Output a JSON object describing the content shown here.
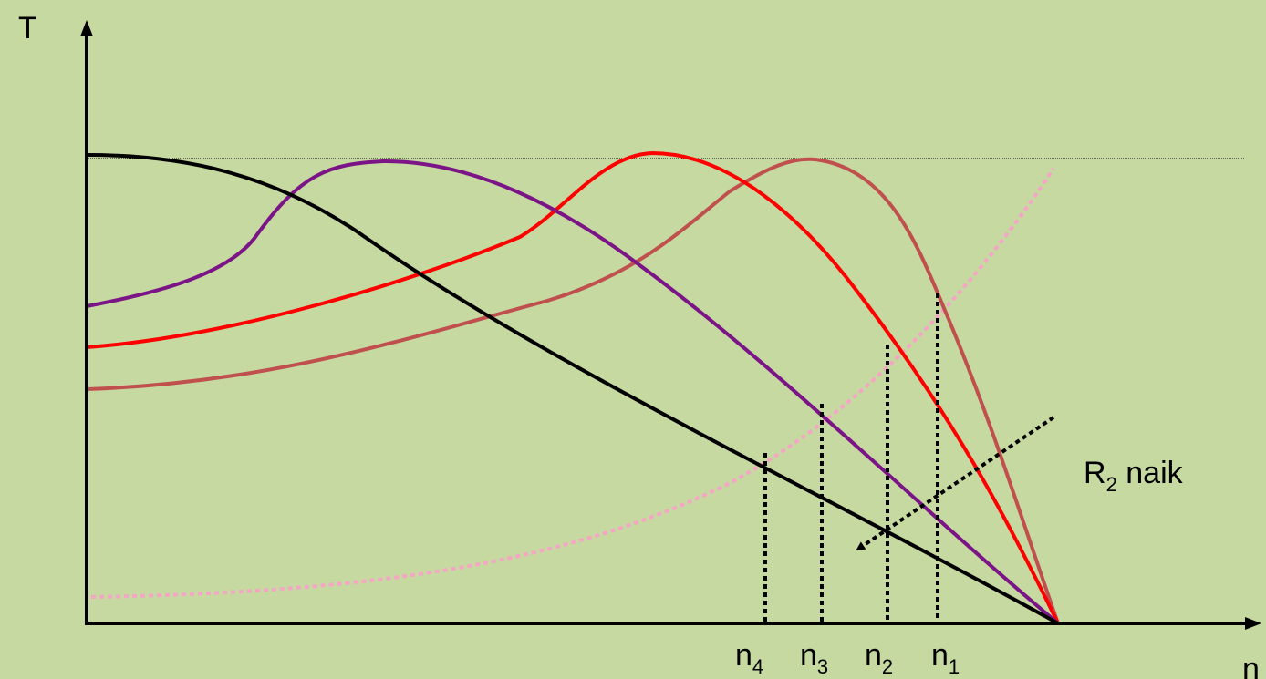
{
  "diagram": {
    "y_axis_label": "T",
    "x_axis_label": "n",
    "annotation": {
      "base": "R",
      "sub": "2",
      "rest": " naik"
    },
    "speed_labels": [
      {
        "base": "n",
        "sub": "4"
      },
      {
        "base": "n",
        "sub": "3"
      },
      {
        "base": "n",
        "sub": "2"
      },
      {
        "base": "n",
        "sub": "1"
      }
    ],
    "colors": {
      "background": "#c6d9a0",
      "axes": "#000000",
      "curve_black": "#000000",
      "curve_purple": "#7b1587",
      "curve_red": "#ff0000",
      "curve_brownred": "#c0504d",
      "load_curve": "#f4a6c4",
      "dotted": "#000000"
    }
  }
}
